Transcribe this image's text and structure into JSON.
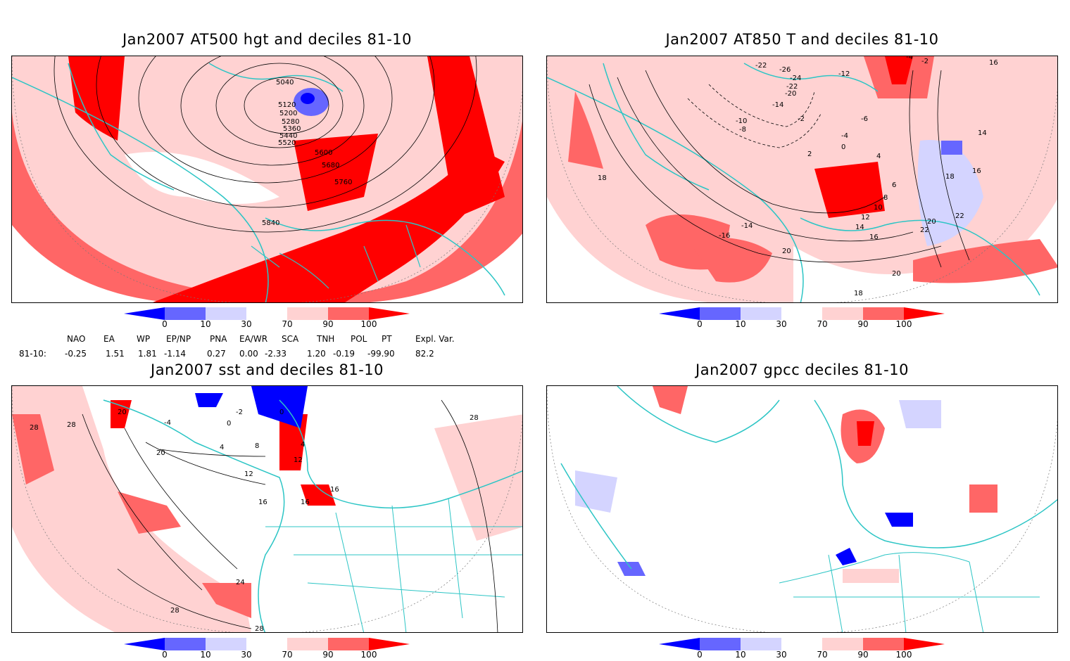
{
  "colors": {
    "d0": "#0000ff",
    "d10": "#6666ff",
    "d30": "#d4d4ff",
    "d70": "#ffd2d2",
    "d90": "#ff6666",
    "d100": "#ff0000",
    "coast": "#2cc5c5",
    "contour": "#000000"
  },
  "colorbar": {
    "ticks": [
      "0",
      "10",
      "30",
      "70",
      "90",
      "100"
    ]
  },
  "panels": [
    {
      "id": "p1",
      "title": "Jan2007 AT500 hgt and deciles 81-10",
      "contour_labels": [
        "5040",
        "5120",
        "5200",
        "5280",
        "5360",
        "5440",
        "5520",
        "5600",
        "5680",
        "5760",
        "5840"
      ]
    },
    {
      "id": "p2",
      "title": "Jan2007 AT850 T and deciles 81-10",
      "contour_labels": [
        "-26",
        "-22",
        "-24",
        "-22",
        "-20",
        "-14",
        "-12",
        "-10",
        "-8",
        "-6",
        "-4",
        "-2",
        "0",
        "2",
        "4",
        "6",
        "8",
        "10",
        "12",
        "14",
        "16",
        "18",
        "20",
        "22",
        "16",
        "14",
        "16",
        "18",
        "20",
        "22",
        "20",
        "18",
        "-16",
        "-14",
        "-2",
        "-4"
      ]
    },
    {
      "id": "p3",
      "title": "Jan2007 sst and deciles 81-10",
      "contour_labels": [
        "28",
        "28",
        "20",
        "20",
        "0",
        "0",
        "4",
        "4",
        "8",
        "12",
        "16",
        "16",
        "16",
        "24",
        "28",
        "28",
        "28",
        "12",
        "-4",
        "-2"
      ]
    },
    {
      "id": "p4",
      "title": "Jan2007 gpcc deciles 81-10",
      "contour_labels": []
    }
  ],
  "indices": {
    "headers": [
      "NAO",
      "EA",
      "WP",
      "EP/NP",
      "PNA",
      "EA/WR",
      "SCA",
      "TNH",
      "POL",
      "PT",
      "Expl. Var."
    ],
    "row_label": "81-10:",
    "values": [
      "-0.25",
      "1.51",
      "1.81",
      "-1.14",
      "0.27",
      "0.00",
      "-2.33",
      "1.20",
      "-0.19",
      "-99.90",
      "82.2"
    ]
  }
}
